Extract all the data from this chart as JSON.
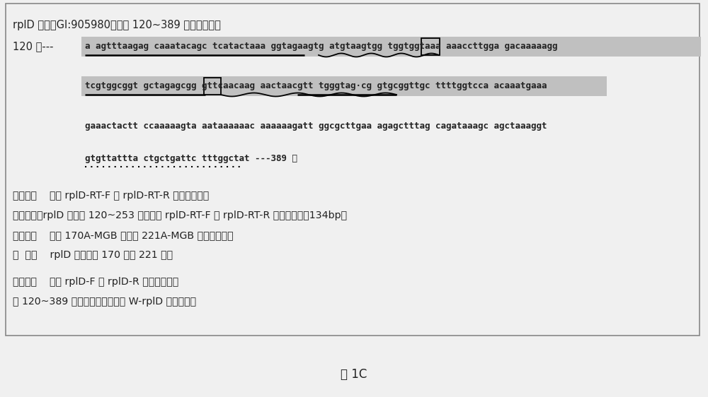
{
  "title": "rplD 基因（GI:905980）中第 120~389 位碱基序列；",
  "caption": "图 1C",
  "bg_color": "#e8e8e8",
  "border_color": "#888888",
  "line1_prefix": "120 位---",
  "line1_seq": "a agtttaagag caaatacagc tcatactaaa ggtagaagtg atgtaagtgg tggtggtaaa aaaccttgga gacaaaaagg",
  "line2_seq": "tcgtggcggt gctagagcgg gttcaacaag aactaacgtt tgggtag·cg gtgcggttgc ttttggtcca acaaatgaaa",
  "line3_seq": "gaaactactt ccaaaaagta aataaaaaac aaaaaagatt ggcgcttgaa agagctttag cagataaagc agctaaaggt",
  "line4_seq": "gtgttattta ctgctgattc tttggctat ---389 位",
  "legend": [
    "下划线：    引物 rplD-RT-F 和 rplD-RT-R 的结合序列；",
    "阴影部分：rplD 基因第 120~253 位，引物 rplD-RT-F 和 rplD-RT-R 的扩增序列，134bp；",
    "波浪线：    探针 170A-MGB 和探针 221A-MGB 的结合序列；",
    "方  框：    rplD 基因的第 170 位和 221 位；",
    "",
    "下圆点：    引物 rplD-F 和 rplD-R 的结合序列；",
    "第 120~389 位序列：野生型质粒 W-rplD 的插入序列"
  ],
  "shade_color": "#c0c0c0",
  "text_color": "#222222",
  "seq_fontsize": 9.0,
  "label_fontsize": 10.5,
  "legend_fontsize": 10.2
}
